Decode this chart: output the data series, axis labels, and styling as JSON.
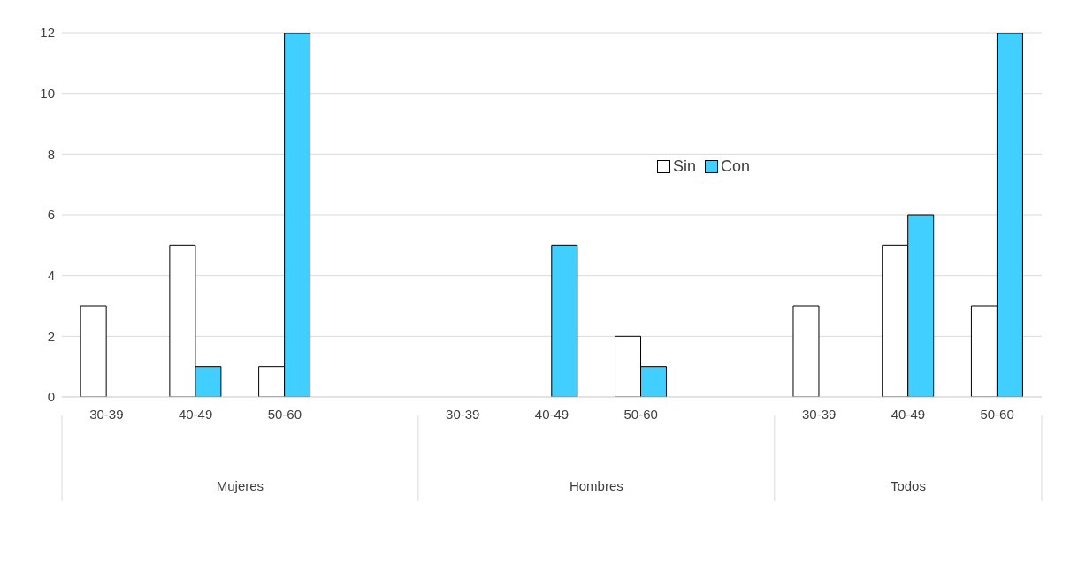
{
  "chart_data": {
    "type": "bar",
    "categories": [
      "30-39",
      "40-49",
      "50-60",
      null,
      "30-39",
      "40-49",
      "50-60",
      null,
      "30-39",
      "40-49",
      "50-60"
    ],
    "annotations": [
      "Mujeres",
      "Hombres",
      "Todos"
    ],
    "series": [
      {
        "name": "Sin",
        "color": "#ffffff",
        "values": [
          3,
          5,
          1,
          null,
          0,
          0,
          2,
          null,
          3,
          5,
          3
        ]
      },
      {
        "name": "Con",
        "color": "#40cfff",
        "values": [
          0,
          1,
          12,
          null,
          0,
          5,
          1,
          null,
          0,
          6,
          12
        ]
      }
    ],
    "ylim": [
      0,
      12
    ],
    "yticks": [
      0,
      2,
      4,
      6,
      8,
      10,
      12
    ],
    "grid": "y",
    "legend": "top"
  }
}
